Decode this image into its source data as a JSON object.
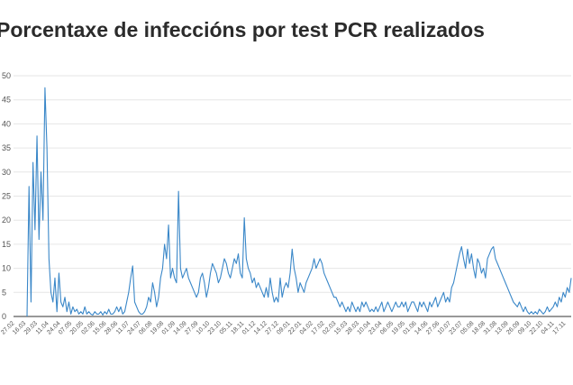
{
  "chart_data": {
    "type": "line",
    "title": "Porcentaxe de infeccións por test PCR realizados",
    "xlabel": "",
    "ylabel": "",
    "ylim": [
      0,
      50
    ],
    "yticks": [
      0,
      5,
      10,
      15,
      20,
      25,
      30,
      35,
      40,
      45,
      50
    ],
    "ytick_labels": [
      "0",
      "5",
      "10",
      "15",
      "20",
      "25",
      "30",
      "35",
      "40",
      "45",
      "50"
    ],
    "grid": true,
    "colors": {
      "line": "#3a87c8",
      "grid": "#e6e6e6",
      "axis": "#333333"
    },
    "x_tick_labels": [
      "27.02",
      "16.03",
      "29.03",
      "11.04",
      "24.04",
      "07.05",
      "20.05",
      "02.06",
      "15.06",
      "28.06",
      "11.07",
      "24.07",
      "06.08",
      "19.08",
      "01.09",
      "14.09",
      "27.09",
      "10.10",
      "23.10",
      "05.11",
      "18.11",
      "01.12",
      "14.12",
      "27.12",
      "09.01",
      "22.01",
      "04.02",
      "17.02",
      "02.03",
      "15.03",
      "28.03",
      "10.04",
      "23.04",
      "06.05",
      "19.05",
      "01.06",
      "14.06",
      "27.06",
      "10.07",
      "23.07",
      "05.08",
      "18.08",
      "31.08",
      "13.09",
      "26.09",
      "09.10",
      "22.10",
      "04.11",
      "17.11"
    ],
    "series": [
      {
        "values": [
          0,
          27,
          3,
          32,
          18,
          37.5,
          16,
          30,
          20,
          47.5,
          35,
          12,
          5,
          3,
          8,
          1,
          9,
          3,
          2,
          4,
          1,
          3,
          0.5,
          2,
          1,
          1.5,
          0.5,
          1,
          0.5,
          2,
          0.5,
          1,
          0.5,
          0.3,
          1,
          0.5,
          0.5,
          1,
          0.3,
          1,
          0.5,
          1.5,
          0.5,
          0.5,
          1,
          2,
          1,
          2,
          0.5,
          1,
          3,
          5,
          8,
          10.5,
          3,
          2,
          1,
          0.5,
          0.5,
          1,
          2,
          4,
          3,
          7,
          5,
          2,
          4,
          8,
          10,
          15,
          12,
          19,
          8,
          10,
          8,
          7,
          26,
          10,
          8,
          9,
          10,
          8,
          7,
          6,
          5,
          4,
          5,
          8,
          9,
          7,
          4,
          6,
          9,
          11,
          10,
          9,
          7,
          8,
          10,
          12,
          11,
          9,
          8,
          10,
          12,
          11,
          13,
          9,
          8,
          20.5,
          12,
          10,
          9,
          7,
          8,
          6,
          7,
          6,
          5,
          4,
          6,
          4,
          8,
          5,
          3,
          4,
          3,
          8,
          4,
          6,
          7,
          6,
          9,
          14,
          10,
          8,
          5,
          7,
          6,
          5,
          7,
          8,
          9,
          10,
          12,
          10,
          11,
          12,
          11,
          9,
          8,
          7,
          6,
          5,
          4,
          4,
          3,
          2,
          3,
          2,
          1,
          2,
          1,
          3,
          2,
          1,
          2,
          1,
          3,
          2,
          3,
          2,
          1,
          1.5,
          1,
          2,
          1,
          2,
          3,
          1,
          2,
          3,
          2,
          1,
          2,
          3,
          2,
          2,
          3,
          2,
          3,
          1,
          2,
          3,
          3,
          2,
          1,
          3,
          2,
          3,
          2,
          1,
          3,
          2,
          3,
          4,
          2,
          3,
          4,
          5,
          3,
          4,
          3,
          6,
          7,
          9,
          11,
          13,
          14.5,
          12,
          10,
          14,
          11,
          13,
          10,
          8,
          12,
          11,
          9,
          10,
          8,
          12,
          13,
          14,
          14.5,
          12,
          11,
          10,
          9,
          8,
          7,
          6,
          5,
          4,
          3,
          2.5,
          2,
          3,
          2,
          1,
          2,
          1,
          0.5,
          1,
          0.5,
          1,
          0.5,
          1.5,
          1,
          0.5,
          1,
          2,
          1,
          1.5,
          2,
          3,
          2,
          4,
          3,
          5,
          4,
          6,
          5,
          8
        ]
      }
    ]
  }
}
